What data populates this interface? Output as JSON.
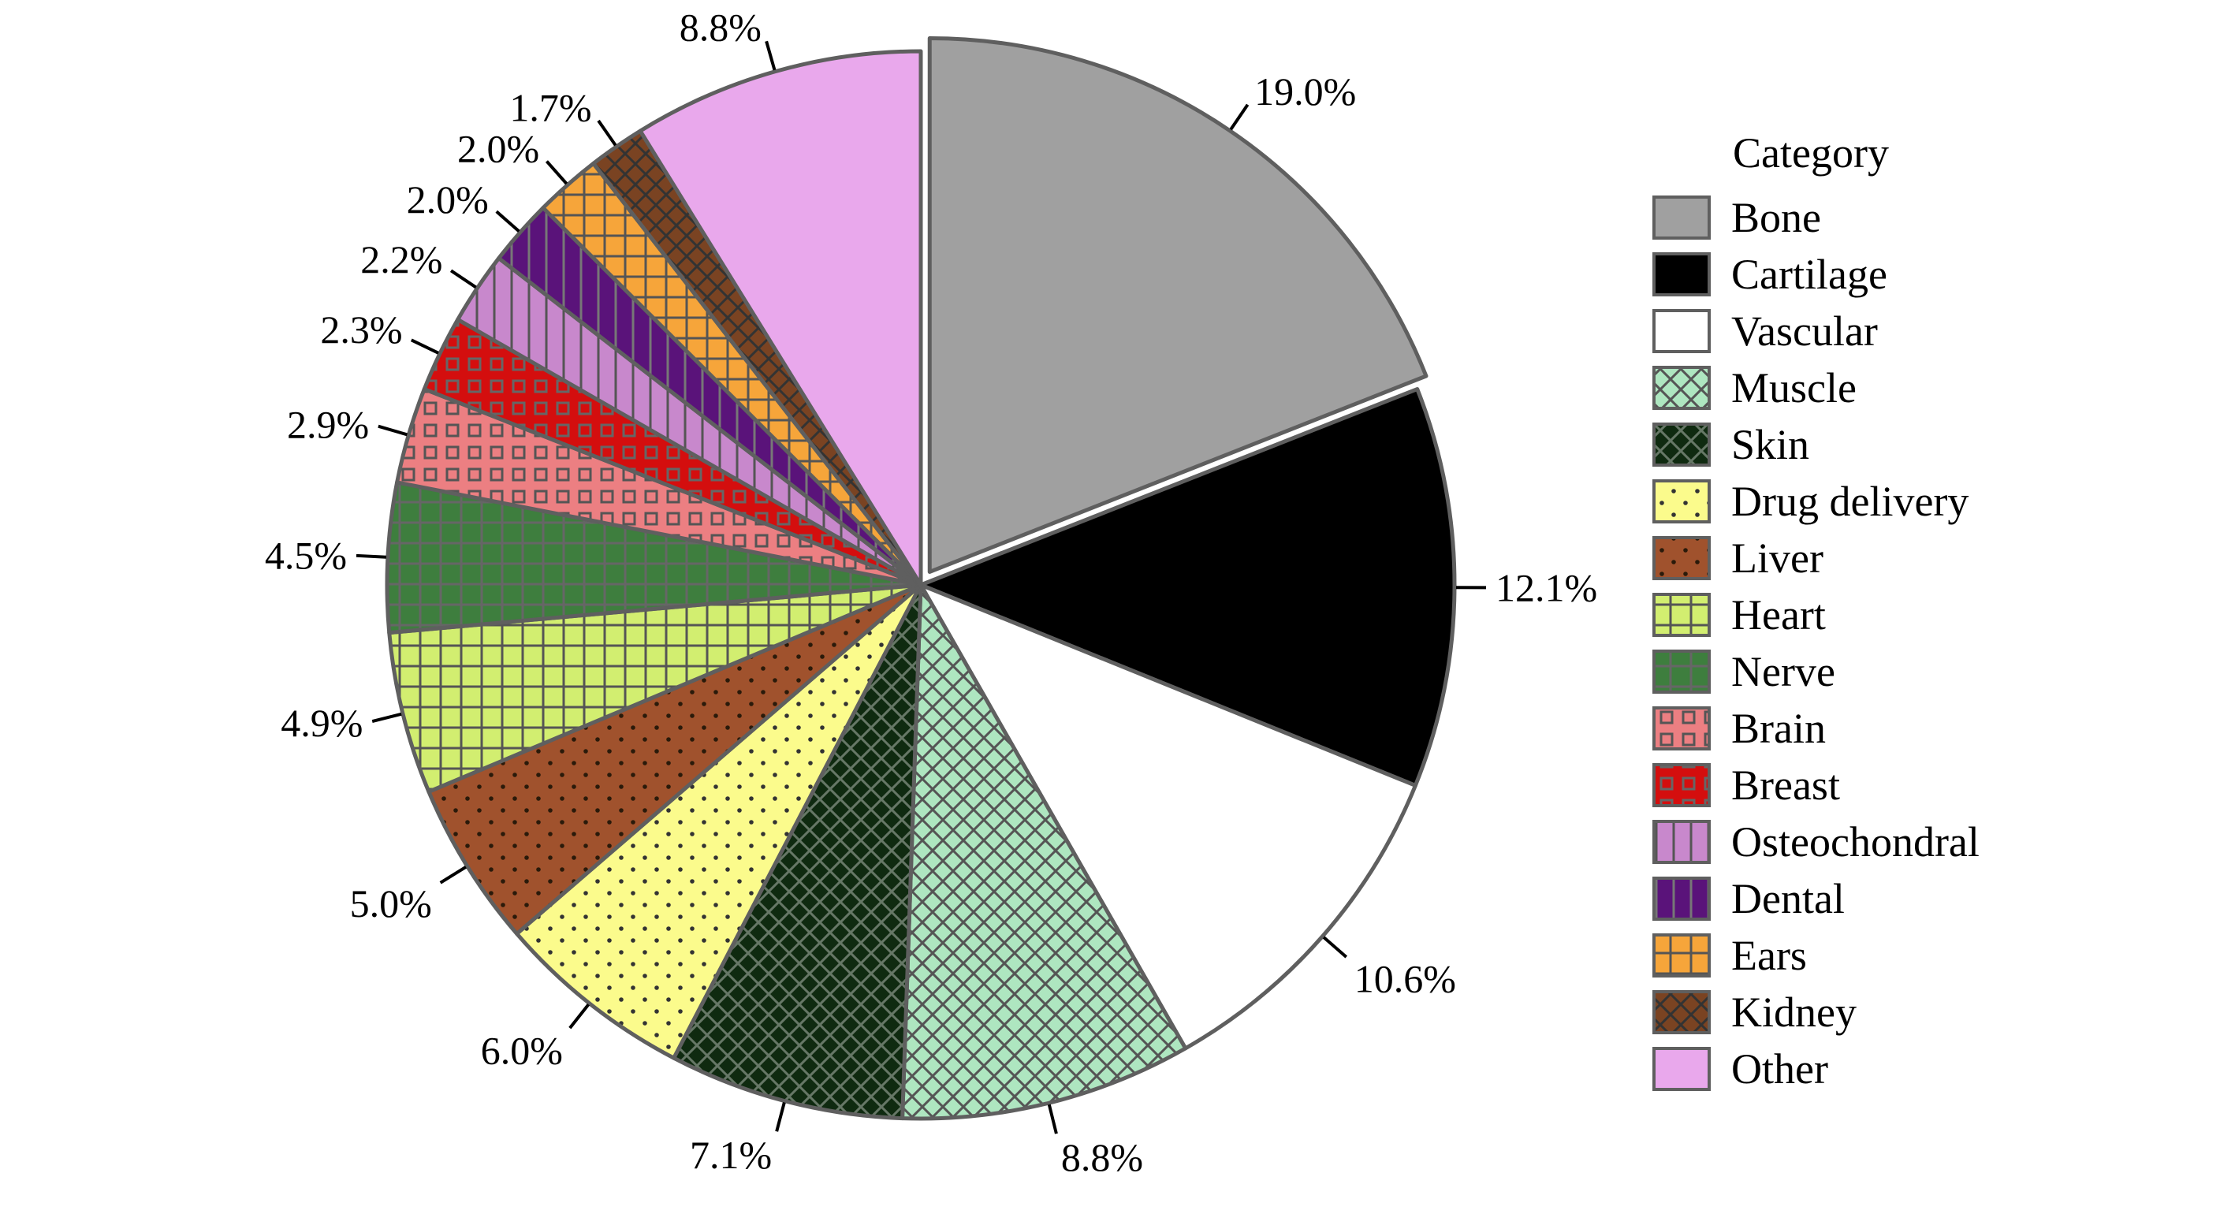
{
  "chart_data": {
    "type": "pie",
    "legend": {
      "title": "Category",
      "position": "right"
    },
    "slices": [
      {
        "label": "Bone",
        "value": 19.0,
        "display": "19.0%",
        "color": "#a0a0a0",
        "pattern": "solid",
        "exploded": true
      },
      {
        "label": "Cartilage",
        "value": 12.1,
        "display": "12.1%",
        "color": "#000000",
        "pattern": "solid"
      },
      {
        "label": "Vascular",
        "value": 10.6,
        "display": "10.6%",
        "color": "#ffffff",
        "pattern": "solid"
      },
      {
        "label": "Muscle",
        "value": 8.8,
        "display": "8.8%",
        "color": "#aee6c0",
        "pattern": "crosshatch",
        "line_color": "#555555"
      },
      {
        "label": "Skin",
        "value": 7.1,
        "display": "7.1%",
        "color": "#0f2a10",
        "pattern": "crosshatch",
        "line_color": "#667766"
      },
      {
        "label": "Drug delivery",
        "value": 6.0,
        "display": "6.0%",
        "color": "#fbfb8c",
        "pattern": "dots",
        "line_color": "#333333"
      },
      {
        "label": "Liver",
        "value": 5.0,
        "display": "5.0%",
        "color": "#a0522d",
        "pattern": "dots",
        "line_color": "#2a1a0a"
      },
      {
        "label": "Heart",
        "value": 4.9,
        "display": "4.9%",
        "color": "#d2ee70",
        "pattern": "grid",
        "line_color": "#555555"
      },
      {
        "label": "Nerve",
        "value": 4.5,
        "display": "4.5%",
        "color": "#3e7e3e",
        "pattern": "grid",
        "line_color": "#666666"
      },
      {
        "label": "Brain",
        "value": 2.9,
        "display": "2.9%",
        "color": "#ec7f82",
        "pattern": "squares",
        "line_color": "#555555"
      },
      {
        "label": "Breast",
        "value": 2.3,
        "display": "2.3%",
        "color": "#d40e0e",
        "pattern": "squares",
        "line_color": "#666666"
      },
      {
        "label": "Osteochondral",
        "value": 2.2,
        "display": "2.2%",
        "color": "#c888cc",
        "pattern": "vlines",
        "line_color": "#555555"
      },
      {
        "label": "Dental",
        "value": 2.0,
        "display": "2.0%",
        "color": "#5a137a",
        "pattern": "vlines",
        "line_color": "#777777"
      },
      {
        "label": "Ears",
        "value": 2.0,
        "display": "2.0%",
        "color": "#f6a53a",
        "pattern": "grid",
        "line_color": "#555555"
      },
      {
        "label": "Kidney",
        "value": 1.7,
        "display": "1.7%",
        "color": "#7a4322",
        "pattern": "crosshatch",
        "line_color": "#333333"
      },
      {
        "label": "Other",
        "value": 8.8,
        "display": "8.8%",
        "color": "#e9a8ec",
        "pattern": "solid"
      }
    ]
  }
}
